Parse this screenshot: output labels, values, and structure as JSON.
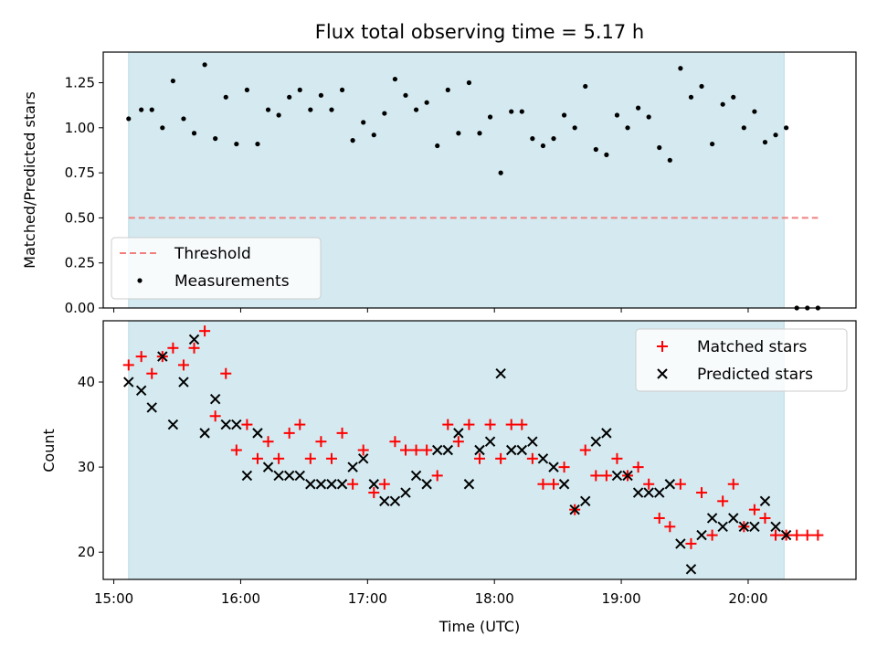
{
  "chart_data": [
    {
      "type": "scatter",
      "title": "Flux total observing time = 5.17 h",
      "xlabel": "",
      "ylabel": "Matched/Predicted stars",
      "ylim": [
        0,
        1.42
      ],
      "yticks": [
        "0.00",
        "0.25",
        "0.50",
        "0.75",
        "1.00",
        "1.25"
      ],
      "shaded_span": [
        "15:07",
        "20:17"
      ],
      "shaded_color": "#d4eaf0",
      "threshold": {
        "name": "Threshold",
        "value": 0.5,
        "x_start": "15:07",
        "x_end": "20:33",
        "color": "#f08080"
      },
      "legend_position": "lower-left",
      "series": [
        {
          "name": "Measurements",
          "marker": "dot",
          "color": "#000000",
          "x": [
            "15:07",
            "15:13",
            "15:18",
            "15:23",
            "15:28",
            "15:33",
            "15:38",
            "15:43",
            "15:48",
            "15:53",
            "15:58",
            "16:03",
            "16:08",
            "16:13",
            "16:18",
            "16:23",
            "16:28",
            "16:33",
            "16:38",
            "16:43",
            "16:48",
            "16:53",
            "16:58",
            "17:03",
            "17:08",
            "17:13",
            "17:18",
            "17:23",
            "17:28",
            "17:33",
            "17:38",
            "17:43",
            "17:48",
            "17:53",
            "17:58",
            "18:03",
            "18:08",
            "18:13",
            "18:18",
            "18:23",
            "18:28",
            "18:33",
            "18:38",
            "18:43",
            "18:48",
            "18:53",
            "18:58",
            "19:03",
            "19:08",
            "19:13",
            "19:18",
            "19:23",
            "19:28",
            "19:33",
            "19:38",
            "19:43",
            "19:48",
            "19:53",
            "19:58",
            "20:03",
            "20:08",
            "20:13",
            "20:18",
            "20:23",
            "20:28",
            "20:33"
          ],
          "y": [
            1.05,
            1.1,
            1.1,
            1.0,
            1.26,
            1.05,
            0.97,
            1.35,
            0.94,
            1.17,
            0.91,
            1.21,
            0.91,
            1.1,
            1.07,
            1.17,
            1.21,
            1.1,
            1.18,
            1.1,
            1.21,
            0.93,
            1.03,
            0.96,
            1.08,
            1.27,
            1.18,
            1.1,
            1.14,
            0.9,
            1.21,
            0.97,
            1.25,
            0.97,
            1.06,
            0.75,
            1.09,
            1.09,
            0.94,
            0.9,
            0.94,
            1.07,
            1.0,
            1.23,
            0.88,
            0.85,
            1.07,
            1.0,
            1.11,
            1.06,
            0.89,
            0.82,
            1.33,
            1.17,
            1.23,
            0.91,
            1.13,
            1.17,
            1.0,
            1.09,
            0.92,
            0.96,
            1.0,
            0.0,
            0.0,
            0.0
          ]
        }
      ]
    },
    {
      "type": "scatter",
      "title": "",
      "xlabel": "Time (UTC)",
      "ylabel": "Count",
      "xlim": [
        "14:55",
        "20:51"
      ],
      "ylim": [
        16.8,
        47.2
      ],
      "xticks": [
        "15:00",
        "16:00",
        "17:00",
        "18:00",
        "19:00",
        "20:00"
      ],
      "yticks": [
        "20",
        "30",
        "40"
      ],
      "shaded_span": [
        "15:07",
        "20:17"
      ],
      "shaded_color": "#d4eaf0",
      "legend_position": "upper-right",
      "series": [
        {
          "name": "Matched stars",
          "marker": "plus",
          "color": "#ff0000",
          "x": [
            "15:07",
            "15:13",
            "15:18",
            "15:23",
            "15:28",
            "15:33",
            "15:38",
            "15:43",
            "15:48",
            "15:53",
            "15:58",
            "16:03",
            "16:08",
            "16:13",
            "16:18",
            "16:23",
            "16:28",
            "16:33",
            "16:38",
            "16:43",
            "16:48",
            "16:53",
            "16:58",
            "17:03",
            "17:08",
            "17:13",
            "17:18",
            "17:23",
            "17:28",
            "17:33",
            "17:38",
            "17:43",
            "17:48",
            "17:53",
            "17:58",
            "18:03",
            "18:08",
            "18:13",
            "18:18",
            "18:23",
            "18:28",
            "18:33",
            "18:38",
            "18:43",
            "18:48",
            "18:53",
            "18:58",
            "19:03",
            "19:08",
            "19:13",
            "19:18",
            "19:23",
            "19:28",
            "19:33",
            "19:38",
            "19:43",
            "19:48",
            "19:53",
            "19:58",
            "20:03",
            "20:08",
            "20:13",
            "20:18",
            "20:23",
            "20:28",
            "20:33"
          ],
          "y": [
            42,
            43,
            41,
            43,
            44,
            42,
            44,
            46,
            36,
            41,
            32,
            35,
            31,
            33,
            31,
            34,
            35,
            31,
            33,
            31,
            34,
            28,
            32,
            27,
            28,
            33,
            32,
            32,
            32,
            29,
            35,
            33,
            35,
            31,
            35,
            31,
            35,
            35,
            31,
            28,
            28,
            30,
            25,
            32,
            29,
            29,
            31,
            29,
            30,
            28,
            24,
            23,
            28,
            21,
            27,
            22,
            26,
            28,
            23,
            25,
            24,
            22,
            22,
            22,
            22,
            22
          ]
        },
        {
          "name": "Predicted stars",
          "marker": "x",
          "color": "#000000",
          "x": [
            "15:07",
            "15:13",
            "15:18",
            "15:23",
            "15:28",
            "15:33",
            "15:38",
            "15:43",
            "15:48",
            "15:53",
            "15:58",
            "16:03",
            "16:08",
            "16:13",
            "16:18",
            "16:23",
            "16:28",
            "16:33",
            "16:38",
            "16:43",
            "16:48",
            "16:53",
            "16:58",
            "17:03",
            "17:08",
            "17:13",
            "17:18",
            "17:23",
            "17:28",
            "17:33",
            "17:38",
            "17:43",
            "17:48",
            "17:53",
            "17:58",
            "18:03",
            "18:08",
            "18:13",
            "18:18",
            "18:23",
            "18:28",
            "18:33",
            "18:38",
            "18:43",
            "18:48",
            "18:53",
            "18:58",
            "19:03",
            "19:08",
            "19:13",
            "19:18",
            "19:23",
            "19:28",
            "19:33",
            "19:38",
            "19:43",
            "19:48",
            "19:53",
            "19:58",
            "20:03",
            "20:08",
            "20:13",
            "20:18"
          ],
          "y": [
            40,
            39,
            37,
            43,
            35,
            40,
            45,
            34,
            38,
            35,
            35,
            29,
            34,
            30,
            29,
            29,
            29,
            28,
            28,
            28,
            28,
            30,
            31,
            28,
            26,
            26,
            27,
            29,
            28,
            32,
            32,
            34,
            28,
            32,
            33,
            41,
            32,
            32,
            33,
            31,
            30,
            28,
            25,
            26,
            33,
            34,
            29,
            29,
            27,
            27,
            27,
            28,
            21,
            18,
            22,
            24,
            23,
            24,
            23,
            23,
            26,
            23,
            22
          ]
        }
      ]
    }
  ]
}
